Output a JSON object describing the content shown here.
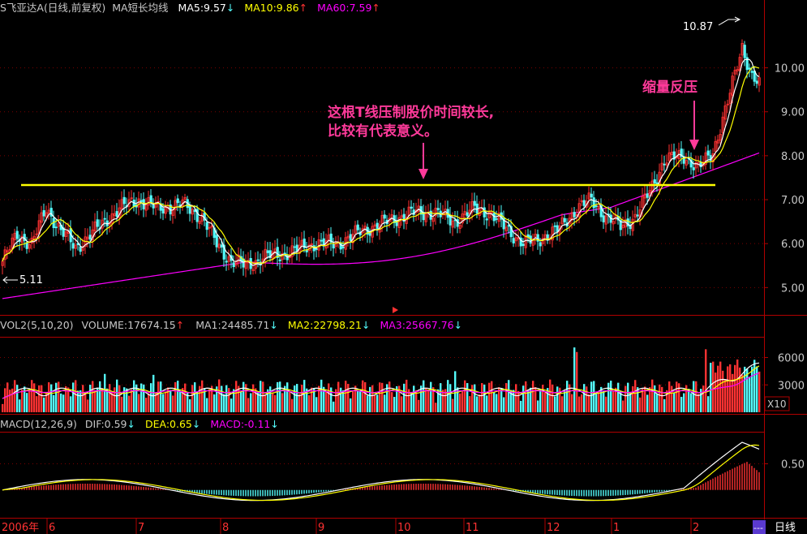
{
  "price_header": {
    "title": "S飞亚达A(日线,前复权)",
    "indicator": "MA短长均线",
    "ma5": "MA5:9.57",
    "ma5_arrow": "↓",
    "ma10": "MA10:9.86",
    "ma10_arrow": "↑",
    "ma60": "MA60:7.59",
    "ma60_arrow": "↑"
  },
  "volume_header": {
    "name": "VOL2(5,10,20)",
    "volume": "VOLUME:17674.15",
    "volume_arrow": "↑",
    "ma1": "MA1:24485.71",
    "ma1_arrow": "↓",
    "ma2": "MA2:22798.21",
    "ma2_arrow": "↓",
    "ma3": "MA3:25667.76",
    "ma3_arrow": "↓"
  },
  "macd_header": {
    "name": "MACD(12,26,9)",
    "dif": "DIF:0.59",
    "dif_arrow": "↓",
    "dea": "DEA:0.65",
    "dea_arrow": "↓",
    "macd": "MACD:-0.11",
    "macd_arrow": "↓"
  },
  "annotations": {
    "line_comment_1": "这根T线压制股价时间较长,",
    "line_comment_2": "比较有代表意义。",
    "shrink_pressure": "缩量反压",
    "high_label": "10.87",
    "low_label": "5.11",
    "volume_unit": "X10",
    "period": "日线"
  },
  "colors": {
    "up": "#ff3232",
    "down": "#54fcfc",
    "ma5": "#ffffff",
    "ma10": "#ffff00",
    "ma60": "#ff00ff",
    "resistance_line": "#ffff00",
    "annotation": "#ff3a9a",
    "axis": "#b00000",
    "text": "#c8c8c8"
  },
  "chart_data": {
    "type": "candlestick",
    "months": [
      "2006年",
      "6",
      "7",
      "8",
      "9",
      "10",
      "11",
      "12",
      "1",
      "2"
    ],
    "price_axis": {
      "ticks": [
        5.0,
        6.0,
        7.0,
        8.0,
        9.0,
        10.0
      ],
      "range": [
        4.6,
        11.1
      ]
    },
    "volume_axis": {
      "ticks": [
        3000,
        6000
      ],
      "range": [
        0,
        8000
      ]
    },
    "macd_axis": {
      "ticks": [
        0.5
      ],
      "range": [
        -0.5,
        1.05
      ]
    },
    "resistance_level": 7.15,
    "price_high": 10.87,
    "price_low": 5.11
  }
}
